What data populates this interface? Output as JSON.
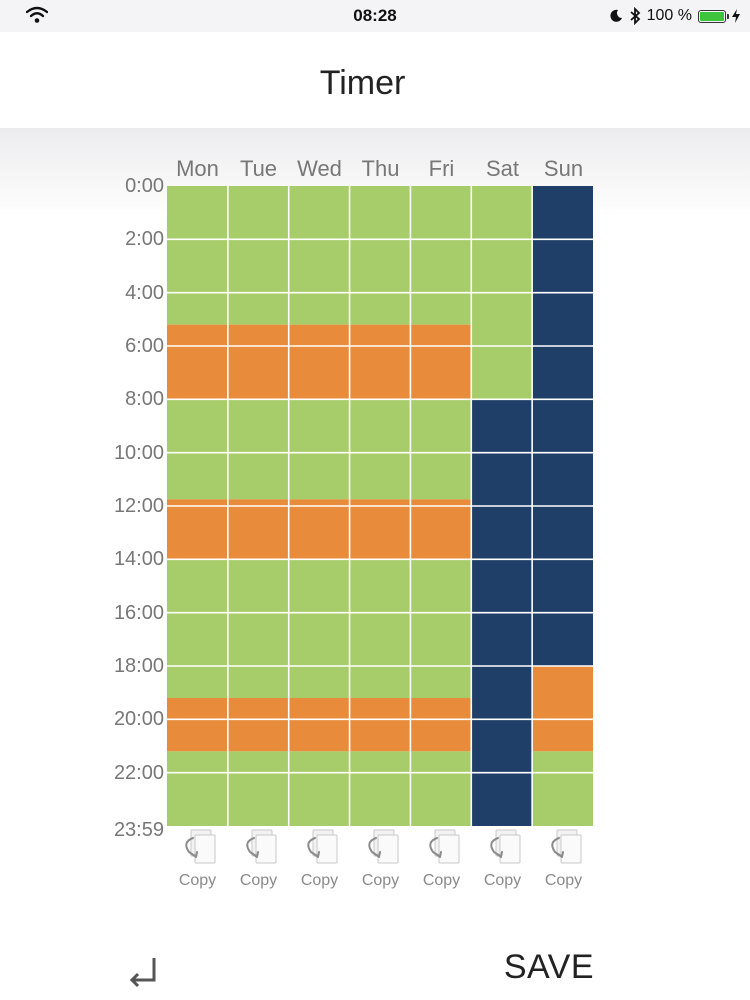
{
  "status_bar": {
    "time": "08:28",
    "battery_text": "100 %",
    "icons": [
      "wifi-icon",
      "moon-icon",
      "bluetooth-icon",
      "battery-icon",
      "charging-icon"
    ]
  },
  "header": {
    "title": "Timer"
  },
  "schedule": {
    "days": [
      "Mon",
      "Tue",
      "Wed",
      "Thu",
      "Fri",
      "Sat",
      "Sun"
    ],
    "hour_labels": [
      "0:00",
      "2:00",
      "4:00",
      "6:00",
      "8:00",
      "10:00",
      "12:00",
      "14:00",
      "16:00",
      "18:00",
      "20:00",
      "22:00",
      "23:59"
    ],
    "colors": {
      "green": "#a7cc6a",
      "orange": "#e88c3b",
      "navy": "#1f3f69"
    },
    "segments": {
      "Mon": [
        [
          "green",
          0,
          5.2
        ],
        [
          "orange",
          5.2,
          8
        ],
        [
          "green",
          8,
          11.75
        ],
        [
          "orange",
          11.75,
          14
        ],
        [
          "green",
          14,
          19.2
        ],
        [
          "orange",
          19.2,
          21.2
        ],
        [
          "green",
          21.2,
          24
        ]
      ],
      "Tue": [
        [
          "green",
          0,
          5.2
        ],
        [
          "orange",
          5.2,
          8
        ],
        [
          "green",
          8,
          11.75
        ],
        [
          "orange",
          11.75,
          14
        ],
        [
          "green",
          14,
          19.2
        ],
        [
          "orange",
          19.2,
          21.2
        ],
        [
          "green",
          21.2,
          24
        ]
      ],
      "Wed": [
        [
          "green",
          0,
          5.2
        ],
        [
          "orange",
          5.2,
          8
        ],
        [
          "green",
          8,
          11.75
        ],
        [
          "orange",
          11.75,
          14
        ],
        [
          "green",
          14,
          19.2
        ],
        [
          "orange",
          19.2,
          21.2
        ],
        [
          "green",
          21.2,
          24
        ]
      ],
      "Thu": [
        [
          "green",
          0,
          5.2
        ],
        [
          "orange",
          5.2,
          8
        ],
        [
          "green",
          8,
          11.75
        ],
        [
          "orange",
          11.75,
          14
        ],
        [
          "green",
          14,
          19.2
        ],
        [
          "orange",
          19.2,
          21.2
        ],
        [
          "green",
          21.2,
          24
        ]
      ],
      "Fri": [
        [
          "green",
          0,
          5.2
        ],
        [
          "orange",
          5.2,
          8
        ],
        [
          "green",
          8,
          11.75
        ],
        [
          "orange",
          11.75,
          14
        ],
        [
          "green",
          14,
          19.2
        ],
        [
          "orange",
          19.2,
          21.2
        ],
        [
          "green",
          21.2,
          24
        ]
      ],
      "Sat": [
        [
          "green",
          0,
          8
        ],
        [
          "navy",
          8,
          24
        ]
      ],
      "Sun": [
        [
          "navy",
          0,
          18
        ],
        [
          "orange",
          18,
          21.2
        ],
        [
          "green",
          21.2,
          24
        ]
      ]
    },
    "copy_label": "Copy"
  },
  "footer": {
    "back_icon": "return-arrow-icon",
    "save_label": "SAVE"
  }
}
